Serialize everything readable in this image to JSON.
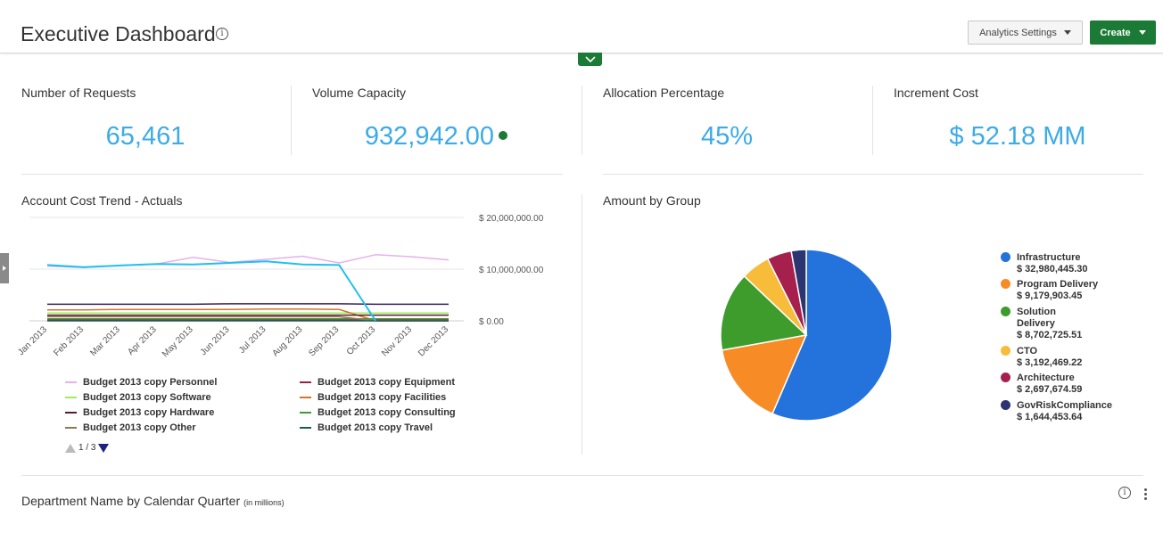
{
  "header": {
    "title": "Executive Dashboard",
    "settings_label": "Analytics Settings",
    "create_label": "Create"
  },
  "kpis": [
    {
      "label": "Number of Requests",
      "value": "65,461"
    },
    {
      "label": "Volume Capacity",
      "value": "932,942.00",
      "status_color": "#1b7a35"
    },
    {
      "label": "Allocation Percentage",
      "value": "45%"
    },
    {
      "label": "Increment Cost",
      "value": "$ 52.18 MM"
    }
  ],
  "trend": {
    "title": "Account Cost Trend - Actuals",
    "legend": [
      {
        "name": "Budget 2013 copy Personnel",
        "color": "#e6b0ee"
      },
      {
        "name": "Budget 2013 copy Equipment",
        "color": "#9c1c4a"
      },
      {
        "name": "Budget 2013 copy Software",
        "color": "#9dee5c"
      },
      {
        "name": "Budget 2013 copy Facilities",
        "color": "#d4762a"
      },
      {
        "name": "Budget 2013 copy Hardware",
        "color": "#5a1a2a"
      },
      {
        "name": "Budget 2013 copy Consulting",
        "color": "#3d9c3a"
      },
      {
        "name": "Budget 2013 copy Other",
        "color": "#8a7a50"
      },
      {
        "name": "Budget 2013 copy Travel",
        "color": "#1d5a54"
      }
    ],
    "pager": "1 / 3"
  },
  "group": {
    "title": "Amount by Group"
  },
  "quarter": {
    "title": "Department Name by Calendar Quarter",
    "note": "(in millions)"
  },
  "chart_data": [
    {
      "type": "line",
      "title": "Account Cost Trend - Actuals",
      "x": [
        "Jan 2013",
        "Feb 2013",
        "Mar 2013",
        "Apr 2013",
        "May 2013",
        "Jun 2013",
        "Jul 2013",
        "Aug 2013",
        "Sep 2013",
        "Oct 2013",
        "Nov 2013",
        "Dec 2013"
      ],
      "y_ticks": [
        "$ 20,000,000.00",
        "$ 10,000,000.00",
        "$ 0.00"
      ],
      "ylim": [
        0,
        20000000
      ],
      "y_axis_position": "right",
      "grid": true,
      "series": [
        {
          "name": "Budget 2013 copy Personnel",
          "color": "#e6b0ee",
          "values": [
            10600000,
            10300000,
            10700000,
            11000000,
            12300000,
            11300000,
            11900000,
            12500000,
            11200000,
            12800000,
            12400000,
            11800000
          ]
        },
        {
          "name": "Budget 2013 copy Equipment",
          "color": "#9c1c4a",
          "values": [
            200000,
            200000,
            200000,
            200000,
            200000,
            200000,
            200000,
            200000,
            200000,
            200000,
            200000,
            200000
          ]
        },
        {
          "name": "Budget 2013 copy Software",
          "color": "#9dee5c",
          "values": [
            1500000,
            1500000,
            1500000,
            1500000,
            1500000,
            1500000,
            1500000,
            1500000,
            1500000,
            1500000,
            1500000,
            1500000
          ]
        },
        {
          "name": "Budget 2013 copy Facilities",
          "color": "#d4762a",
          "values": [
            2100000,
            2100000,
            2200000,
            2200000,
            2200000,
            2200000,
            2300000,
            2300000,
            2200000,
            0,
            0,
            0
          ]
        },
        {
          "name": "Budget 2013 copy Hardware",
          "color": "#5a1a2a",
          "values": [
            1100000,
            1100000,
            1100000,
            1100000,
            1100000,
            1100000,
            1100000,
            1100000,
            1100000,
            1100000,
            1100000,
            1100000
          ]
        },
        {
          "name": "Budget 2013 copy Consulting",
          "color": "#3d9c3a",
          "values": [
            400000,
            400000,
            400000,
            400000,
            400000,
            400000,
            400000,
            400000,
            400000,
            400000,
            400000,
            400000
          ]
        },
        {
          "name": "Budget 2013 copy Other",
          "color": "#8a7a50",
          "values": [
            800000,
            800000,
            800000,
            800000,
            800000,
            800000,
            800000,
            800000,
            800000,
            0,
            0,
            0
          ]
        },
        {
          "name": "Budget 2013 copy Travel",
          "color": "#1d5a54",
          "values": [
            0,
            0,
            0,
            0,
            0,
            0,
            0,
            0,
            0,
            0,
            0,
            0
          ]
        },
        {
          "name": "",
          "color": "#3a1e5c",
          "values": [
            3200000,
            3200000,
            3200000,
            3200000,
            3200000,
            3300000,
            3300000,
            3300000,
            3300000,
            3200000,
            3200000,
            3200000
          ]
        },
        {
          "name": "",
          "color": "#1ec0f0",
          "values": [
            10800000,
            10400000,
            10700000,
            11000000,
            10900000,
            11200000,
            11500000,
            10900000,
            10800000,
            0,
            null,
            null
          ]
        }
      ]
    },
    {
      "type": "pie",
      "title": "Amount by Group",
      "legend_position": "right",
      "series": [
        {
          "name": "Infrastructure",
          "label": "$ 32,980,445.30",
          "value": 32980445.3,
          "color": "#2472dc"
        },
        {
          "name": "Program Delivery",
          "label": "$ 9,179,903.45",
          "value": 9179903.45,
          "color": "#f78c27"
        },
        {
          "name": "Solution Delivery",
          "label": "$ 8,702,725.51",
          "value": 8702725.51,
          "color": "#3e9c2c"
        },
        {
          "name": "CTO",
          "label": "$ 3,192,469.22",
          "value": 3192469.22,
          "color": "#f7bc3a"
        },
        {
          "name": "Architecture",
          "label": "$ 2,697,674.59",
          "value": 2697674.59,
          "color": "#a6204e"
        },
        {
          "name": "GovRiskCompliance",
          "label": "$ 1,644,453.64",
          "value": 1644453.64,
          "color": "#2c3472"
        }
      ]
    }
  ]
}
